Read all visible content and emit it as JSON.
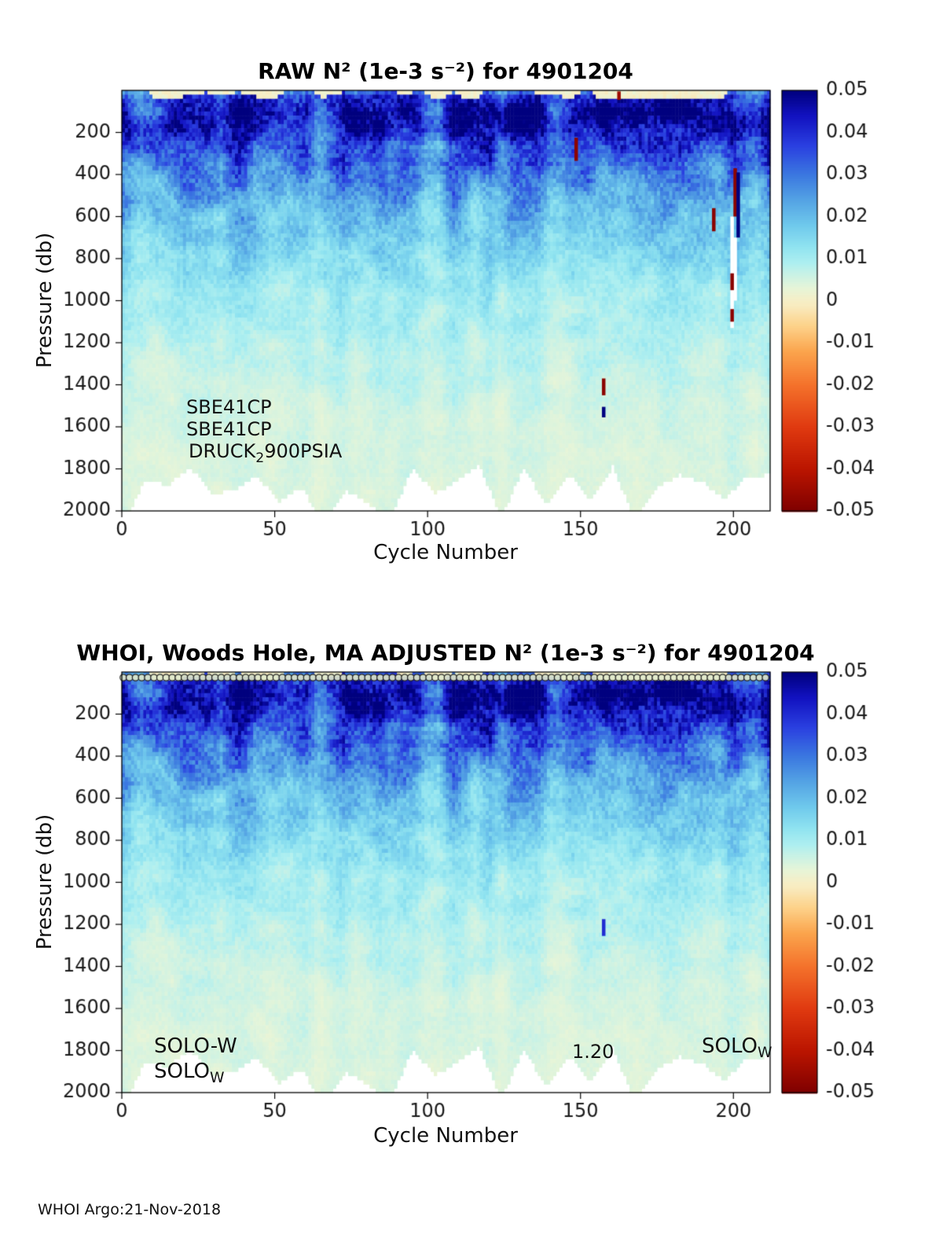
{
  "figure": {
    "footer": "WHOI Argo:21-Nov-2018"
  },
  "chart_data": [
    {
      "type": "heatmap",
      "title": "RAW N² (1e-3 s⁻²) for 4901204",
      "xlabel": "Cycle Number",
      "ylabel": "Pressure (db)",
      "x_range": [
        0,
        212
      ],
      "y_range": [
        0,
        2000
      ],
      "y_axis_reversed": true,
      "x_ticks": [
        0,
        50,
        100,
        150,
        200
      ],
      "y_ticks": [
        200,
        400,
        600,
        800,
        1000,
        1200,
        1400,
        1600,
        1800,
        2000
      ],
      "colorbar": {
        "range": [
          -0.05,
          0.05
        ],
        "tick_labels": [
          "0.05",
          "0.04",
          "0.03",
          "0.02",
          "0.01",
          "0",
          "-0.01",
          "-0.02",
          "-0.03",
          "-0.04",
          "-0.05"
        ],
        "position": "right"
      },
      "colormap": [
        [
          -0.05,
          "#7f0000"
        ],
        [
          -0.04,
          "#bb1500"
        ],
        [
          -0.03,
          "#e03a10"
        ],
        [
          -0.02,
          "#f4722b"
        ],
        [
          -0.012,
          "#fba54d"
        ],
        [
          -0.006,
          "#fdd28a"
        ],
        [
          -0.001,
          "#f8ecc0"
        ],
        [
          0.0,
          "#f6eec6"
        ],
        [
          0.003,
          "#e7f5d8"
        ],
        [
          0.006,
          "#ccf2e4"
        ],
        [
          0.009,
          "#aeeff0"
        ],
        [
          0.013,
          "#8fe3f0"
        ],
        [
          0.018,
          "#6fc9ec"
        ],
        [
          0.024,
          "#54a3e4"
        ],
        [
          0.03,
          "#3b78e0"
        ],
        [
          0.037,
          "#2a3fe0"
        ],
        [
          0.044,
          "#1212c0"
        ],
        [
          0.05,
          "#00007f"
        ]
      ],
      "depth_profile": {
        "pressure": [
          0,
          30,
          120,
          250,
          400,
          600,
          800,
          1000,
          1300,
          1600,
          2000
        ],
        "n2_mean": [
          0.03,
          0.04,
          0.046,
          0.036,
          0.026,
          0.019,
          0.014,
          0.01,
          0.007,
          0.005,
          0.004
        ]
      },
      "noise_seed": 7,
      "bottom_edge_db": [
        1770,
        2000
      ],
      "grid": false,
      "annotations": [
        {
          "text": "SBE41CP"
        },
        {
          "text": "SBE41CP"
        },
        {
          "pre": "DRUCK",
          "sub": "2",
          "post": "900PSIA"
        }
      ],
      "anomalies": [
        [
          148,
          225,
          335,
          -0.048
        ],
        [
          162,
          5,
          45,
          -0.045
        ],
        [
          157,
          1370,
          1450,
          -0.048
        ],
        [
          157,
          1505,
          1555,
          0.05
        ],
        [
          193,
          560,
          670,
          -0.048
        ],
        [
          200,
          370,
          600,
          -0.048
        ],
        [
          201,
          390,
          700,
          0.05
        ],
        [
          199,
          870,
          950,
          -0.048
        ],
        [
          199,
          1040,
          1100,
          -0.048
        ]
      ],
      "gaps": [
        [
          199,
          600,
          1130
        ],
        [
          200,
          700,
          1000
        ]
      ],
      "top_markers": false
    },
    {
      "type": "heatmap",
      "title": "WHOI, Woods Hole, MA  ADJUSTED N² (1e-3 s⁻²) for 4901204",
      "xlabel": "Cycle Number",
      "ylabel": "Pressure (db)",
      "x_range": [
        0,
        212
      ],
      "y_range": [
        0,
        2000
      ],
      "y_axis_reversed": true,
      "x_ticks": [
        0,
        50,
        100,
        150,
        200
      ],
      "y_ticks": [
        200,
        400,
        600,
        800,
        1000,
        1200,
        1400,
        1600,
        1800,
        2000
      ],
      "colorbar": {
        "range": [
          -0.05,
          0.05
        ],
        "tick_labels": [
          "0.05",
          "0.04",
          "0.03",
          "0.02",
          "0.01",
          "0",
          "-0.01",
          "-0.02",
          "-0.03",
          "-0.04",
          "-0.05"
        ],
        "position": "right"
      },
      "colormap": [
        [
          -0.05,
          "#7f0000"
        ],
        [
          -0.04,
          "#bb1500"
        ],
        [
          -0.03,
          "#e03a10"
        ],
        [
          -0.02,
          "#f4722b"
        ],
        [
          -0.012,
          "#fba54d"
        ],
        [
          -0.006,
          "#fdd28a"
        ],
        [
          -0.001,
          "#f8ecc0"
        ],
        [
          0.0,
          "#f6eec6"
        ],
        [
          0.003,
          "#e7f5d8"
        ],
        [
          0.006,
          "#ccf2e4"
        ],
        [
          0.009,
          "#aeeff0"
        ],
        [
          0.013,
          "#8fe3f0"
        ],
        [
          0.018,
          "#6fc9ec"
        ],
        [
          0.024,
          "#54a3e4"
        ],
        [
          0.03,
          "#3b78e0"
        ],
        [
          0.037,
          "#2a3fe0"
        ],
        [
          0.044,
          "#1212c0"
        ],
        [
          0.05,
          "#00007f"
        ]
      ],
      "depth_profile": {
        "pressure": [
          0,
          30,
          120,
          250,
          400,
          600,
          800,
          1000,
          1300,
          1600,
          2000
        ],
        "n2_mean": [
          0.03,
          0.04,
          0.046,
          0.036,
          0.026,
          0.019,
          0.014,
          0.01,
          0.007,
          0.005,
          0.004
        ]
      },
      "noise_seed": 7,
      "bottom_edge_db": [
        1770,
        2000
      ],
      "grid": false,
      "annotations": [
        {
          "text": "SOLO-W"
        },
        {
          "pre": "SOLO",
          "sub": "W"
        },
        {
          "text": "1.20"
        },
        {
          "pre": "SOLO",
          "sub": "W"
        }
      ],
      "anomalies": [
        [
          157,
          1175,
          1255,
          0.04
        ]
      ],
      "gaps": [],
      "top_markers": true
    }
  ]
}
